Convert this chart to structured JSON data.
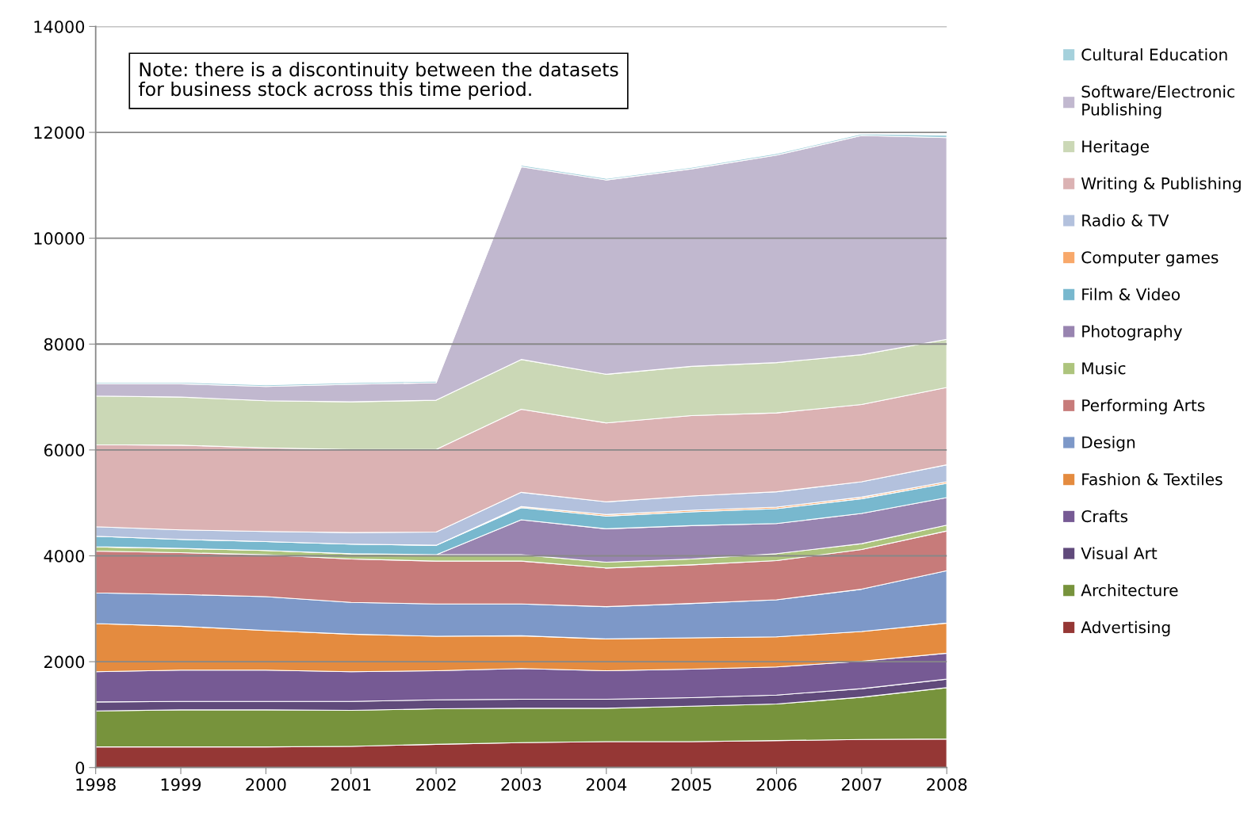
{
  "chart_data": {
    "type": "area",
    "stacked": true,
    "x": [
      1998,
      1999,
      2000,
      2001,
      2002,
      2003,
      2004,
      2005,
      2006,
      2007,
      2008
    ],
    "xlim": [
      1998,
      2008
    ],
    "xticks": [
      1998,
      1999,
      2000,
      2001,
      2002,
      2003,
      2004,
      2005,
      2006,
      2007,
      2008
    ],
    "ylim": [
      0,
      14000
    ],
    "yticks": [
      0,
      2000,
      4000,
      6000,
      8000,
      10000,
      12000,
      14000
    ],
    "grid": "y",
    "legend": "right",
    "annotations": [
      "Note: there is a discontinuity between the datasets\nfor business stock across this time period."
    ],
    "series": [
      {
        "name": "Advertising",
        "color": "#953735",
        "values": [
          390,
          390,
          390,
          400,
          440,
          470,
          490,
          490,
          510,
          530,
          540
        ]
      },
      {
        "name": "Architecture",
        "color": "#77933c",
        "values": [
          680,
          700,
          700,
          680,
          670,
          650,
          630,
          670,
          690,
          800,
          970
        ]
      },
      {
        "name": "Visual Art",
        "color": "#604a7b",
        "values": [
          170,
          160,
          160,
          170,
          170,
          170,
          170,
          160,
          170,
          160,
          160
        ]
      },
      {
        "name": "Crafts",
        "color": "#765a94",
        "values": [
          570,
          590,
          590,
          560,
          550,
          580,
          540,
          540,
          530,
          520,
          490
        ]
      },
      {
        "name": "Fashion & Textiles",
        "color": "#e48b3f",
        "values": [
          910,
          830,
          750,
          710,
          650,
          620,
          600,
          590,
          570,
          560,
          570
        ]
      },
      {
        "name": "Design",
        "color": "#7d98c8",
        "values": [
          580,
          600,
          640,
          600,
          610,
          600,
          610,
          650,
          700,
          800,
          990
        ]
      },
      {
        "name": "Performing Arts",
        "color": "#c77b7a",
        "values": [
          790,
          790,
          790,
          820,
          810,
          810,
          730,
          730,
          740,
          750,
          750
        ]
      },
      {
        "name": "Music",
        "color": "#adc47d",
        "values": [
          80,
          80,
          80,
          100,
          120,
          120,
          110,
          110,
          130,
          110,
          110
        ]
      },
      {
        "name": "Photography",
        "color": "#9884b0",
        "values": [
          0,
          0,
          0,
          0,
          0,
          660,
          630,
          630,
          570,
          570,
          520
        ]
      },
      {
        "name": "Film & Video",
        "color": "#78b8ce",
        "values": [
          200,
          170,
          170,
          180,
          180,
          230,
          240,
          260,
          280,
          280,
          270
        ]
      },
      {
        "name": "Computer games",
        "color": "#f8a86a",
        "values": [
          0,
          0,
          0,
          0,
          0,
          20,
          30,
          30,
          30,
          30,
          30
        ]
      },
      {
        "name": "Radio & TV",
        "color": "#b3c1dd",
        "values": [
          180,
          180,
          190,
          220,
          250,
          270,
          240,
          270,
          290,
          290,
          320
        ]
      },
      {
        "name": "Writing & Publishing",
        "color": "#dbb2b3",
        "values": [
          1550,
          1600,
          1580,
          1570,
          1560,
          1570,
          1490,
          1520,
          1490,
          1460,
          1460
        ]
      },
      {
        "name": "Heritage",
        "color": "#cbd8b6",
        "values": [
          920,
          910,
          890,
          900,
          930,
          940,
          920,
          930,
          950,
          940,
          910
        ]
      },
      {
        "name": "Software/Electronic Publishing",
        "color": "#c1b8cf",
        "values": [
          230,
          250,
          270,
          330,
          330,
          3640,
          3670,
          3730,
          3920,
          4140,
          3810
        ]
      },
      {
        "name": "Cultural Education",
        "color": "#a5d1dc",
        "values": [
          30,
          30,
          30,
          30,
          30,
          30,
          30,
          30,
          30,
          30,
          50
        ]
      }
    ]
  }
}
